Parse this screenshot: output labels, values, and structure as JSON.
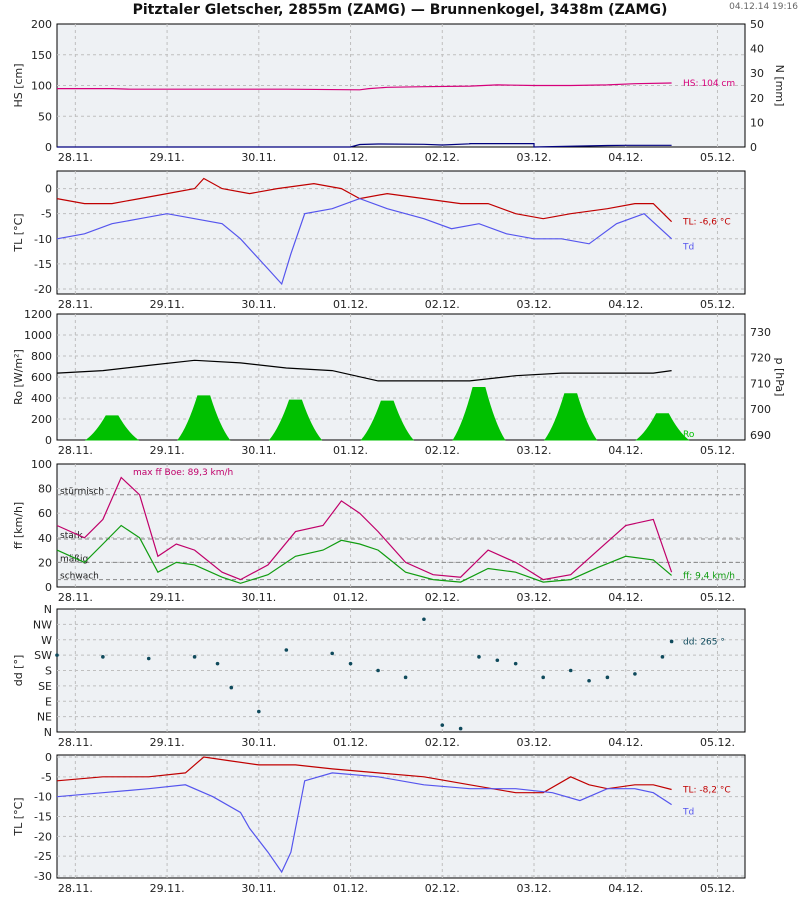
{
  "title": "Pitztaler Gletscher, 2855m (ZAMG) — Brunnenkogel, 3438m (ZAMG)",
  "timestamp": "04.12.14 19:16",
  "x_tick_labels": [
    "28.11.",
    "29.11.",
    "30.11.",
    "01.12.",
    "02.12.",
    "03.12.",
    "04.12.",
    "05.12."
  ],
  "colors": {
    "grid": "#bfbfbf",
    "panel_bg": "#eef1f4",
    "hs": "#d6007a",
    "n": "#00007f",
    "tl": "#c00000",
    "td": "#5555ee",
    "ro": "#00c000",
    "p": "#000000",
    "ff": "#109c10",
    "boe": "#c0006a",
    "dd": "#0f4a5c"
  },
  "chart_data": [
    {
      "type": "line",
      "ylabel": "HS [cm]",
      "ylabel_right": "N [mm]",
      "ylim": [
        0,
        200
      ],
      "yticks": [
        "0",
        "50",
        "100",
        "150",
        "200"
      ],
      "ylim_right": [
        0,
        50
      ],
      "yticks_right": [
        "0",
        "10",
        "20",
        "30",
        "40",
        "50"
      ],
      "x_days_range": [
        0,
        7.5
      ],
      "series": [
        {
          "name": "HS",
          "x": [
            0,
            0.6,
            0.8,
            1.5,
            2.5,
            3.3,
            3.4,
            3.6,
            4,
            4.5,
            4.8,
            5.2,
            5.6,
            6,
            6.3,
            6.7
          ],
          "y": [
            95,
            95,
            94,
            94,
            94,
            93,
            95,
            97,
            98,
            99,
            101,
            100,
            100,
            101,
            103,
            104
          ]
        },
        {
          "name": "N",
          "x": [
            0,
            3.2,
            3.3,
            3.5,
            4,
            4.2,
            4.5,
            4.5,
            5.2,
            5.2,
            6.0,
            6.2,
            6.7
          ],
          "y": [
            0,
            0,
            1,
            1.2,
            1.1,
            0.8,
            1.3,
            1.4,
            1.4,
            0,
            0.6,
            0.7,
            0.7
          ]
        }
      ],
      "annotations": [
        "HS: 104 cm"
      ]
    },
    {
      "type": "line",
      "ylabel": "TL [°C]",
      "ylim": [
        -21,
        3.5
      ],
      "yticks": [
        "-20",
        "-15",
        "-10",
        "-5",
        "0"
      ],
      "ytick_values": [
        -20,
        -15,
        -10,
        -5,
        0
      ],
      "x_days_range": [
        0,
        7.5
      ],
      "series": [
        {
          "name": "TL",
          "x": [
            0,
            0.3,
            0.6,
            0.9,
            1.2,
            1.5,
            1.6,
            1.8,
            2.1,
            2.4,
            2.8,
            3.1,
            3.3,
            3.6,
            4.0,
            4.4,
            4.7,
            5.0,
            5.3,
            5.6,
            6.0,
            6.3,
            6.5,
            6.7
          ],
          "y": [
            -2,
            -3,
            -3,
            -2,
            -1,
            0,
            2,
            0,
            -1,
            0,
            1,
            0,
            -2,
            -1,
            -2,
            -3,
            -3,
            -5,
            -6,
            -5,
            -4,
            -3,
            -3,
            -6.6
          ]
        },
        {
          "name": "Td",
          "x": [
            0,
            0.3,
            0.6,
            0.9,
            1.2,
            1.5,
            1.8,
            2.0,
            2.2,
            2.3,
            2.45,
            2.55,
            2.7,
            3.0,
            3.3,
            3.6,
            4.0,
            4.3,
            4.6,
            4.9,
            5.2,
            5.5,
            5.8,
            6.1,
            6.4,
            6.7
          ],
          "y": [
            -10,
            -9,
            -7,
            -6,
            -5,
            -6,
            -7,
            -10,
            -14,
            -16,
            -19,
            -13,
            -5,
            -4,
            -2,
            -4,
            -6,
            -8,
            -7,
            -9,
            -10,
            -10,
            -11,
            -7,
            -5,
            -10
          ]
        }
      ],
      "annotations": [
        "TL: -6,6 °C",
        "Td"
      ]
    },
    {
      "type": "area",
      "ylabel": "Ro [W/m²]",
      "ylabel_right": "p [hPa]",
      "ylim": [
        0,
        1200
      ],
      "yticks": [
        "0",
        "200",
        "400",
        "600",
        "800",
        "1000",
        "1200"
      ],
      "ylim_right": [
        688,
        737
      ],
      "yticks_right": [
        "690",
        "700",
        "710",
        "720",
        "730"
      ],
      "ytick_values_right": [
        690,
        700,
        710,
        720,
        730
      ],
      "x_days_range": [
        0,
        7.5
      ],
      "day_peaks_x": [
        0.6,
        1.6,
        2.6,
        3.6,
        4.6,
        5.6,
        6.6
      ],
      "day_peaks_y": [
        230,
        420,
        380,
        370,
        500,
        440,
        250
      ],
      "series": [
        {
          "name": "p",
          "x": [
            0,
            0.5,
            1.0,
            1.5,
            2.0,
            2.5,
            3.0,
            3.5,
            4.0,
            4.5,
            5.0,
            5.5,
            6.0,
            6.5,
            6.7
          ],
          "y": [
            714,
            715,
            717,
            719,
            718,
            716,
            715,
            711,
            711,
            711,
            713,
            714,
            714,
            714,
            715
          ]
        }
      ],
      "annotations": [
        "Ro"
      ]
    },
    {
      "type": "line",
      "ylabel": "ff [km/h]",
      "ylim": [
        0,
        100
      ],
      "yticks": [
        "0",
        "20",
        "40",
        "60",
        "80",
        "100"
      ],
      "x_days_range": [
        0,
        7.5
      ],
      "reference_lines": [
        {
          "label": "stürmisch",
          "y": 75
        },
        {
          "label": "stark",
          "y": 39
        },
        {
          "label": "mäßig",
          "y": 20
        },
        {
          "label": "schwach",
          "y": 6
        }
      ],
      "series": [
        {
          "name": "ff",
          "x": [
            0,
            0.3,
            0.5,
            0.7,
            0.9,
            1.1,
            1.3,
            1.5,
            1.8,
            2.0,
            2.3,
            2.6,
            2.9,
            3.1,
            3.3,
            3.5,
            3.8,
            4.1,
            4.4,
            4.7,
            5.0,
            5.3,
            5.6,
            5.9,
            6.2,
            6.5,
            6.7
          ],
          "y": [
            30,
            20,
            35,
            50,
            40,
            12,
            20,
            18,
            8,
            3,
            10,
            25,
            30,
            38,
            35,
            30,
            12,
            6,
            4,
            15,
            12,
            4,
            6,
            16,
            25,
            22,
            9.4
          ]
        },
        {
          "name": "Boe",
          "x": [
            0,
            0.3,
            0.5,
            0.7,
            0.9,
            1.1,
            1.3,
            1.5,
            1.8,
            2.0,
            2.3,
            2.6,
            2.9,
            3.1,
            3.3,
            3.5,
            3.8,
            4.1,
            4.4,
            4.7,
            5.0,
            5.3,
            5.6,
            5.9,
            6.2,
            6.5,
            6.7
          ],
          "y": [
            50,
            40,
            55,
            89,
            75,
            25,
            35,
            30,
            12,
            6,
            18,
            45,
            50,
            70,
            60,
            45,
            20,
            10,
            8,
            30,
            20,
            6,
            10,
            30,
            50,
            55,
            12
          ]
        }
      ],
      "annotations": [
        "max ff Boe: 89,3 km/h",
        "ff: 9,4 km/h"
      ]
    },
    {
      "type": "scatter",
      "ylabel": "dd [°]",
      "ylim": [
        0,
        360
      ],
      "yticks": [
        "N",
        "NE",
        "E",
        "SE",
        "S",
        "SW",
        "W",
        "NW",
        "N"
      ],
      "ytick_values": [
        0,
        45,
        90,
        135,
        180,
        225,
        270,
        315,
        360
      ],
      "x_days_range": [
        0,
        7.5
      ],
      "point_x": [
        0,
        0.5,
        1.0,
        1.5,
        1.75,
        1.9,
        2.2,
        2.5,
        3.0,
        3.2,
        3.5,
        3.8,
        4.0,
        4.2,
        4.4,
        4.6,
        4.8,
        5.0,
        5.3,
        5.6,
        5.8,
        6.0,
        6.3,
        6.6,
        6.7
      ],
      "point_y": [
        225,
        220,
        215,
        220,
        200,
        130,
        60,
        240,
        230,
        200,
        180,
        160,
        330,
        20,
        10,
        220,
        210,
        200,
        160,
        180,
        150,
        160,
        170,
        220,
        265
      ],
      "annotations": [
        "dd: 265 °"
      ]
    },
    {
      "type": "line",
      "ylabel": "TL [°C]",
      "ylim": [
        -30.5,
        0.5
      ],
      "yticks": [
        "-30",
        "-25",
        "-20",
        "-15",
        "-10",
        "-5",
        "0"
      ],
      "ytick_values": [
        -30,
        -25,
        -20,
        -15,
        -10,
        -5,
        0
      ],
      "x_days_range": [
        0,
        7.5
      ],
      "series": [
        {
          "name": "TL",
          "x": [
            0,
            0.5,
            1.0,
            1.4,
            1.6,
            1.9,
            2.2,
            2.6,
            3.0,
            3.5,
            4.0,
            4.5,
            5.0,
            5.3,
            5.6,
            5.8,
            6.0,
            6.3,
            6.5,
            6.7
          ],
          "y": [
            -6,
            -5,
            -5,
            -4,
            0,
            -1,
            -2,
            -2,
            -3,
            -4,
            -5,
            -7,
            -9,
            -9,
            -5,
            -7,
            -8,
            -7,
            -7,
            -8.2
          ]
        },
        {
          "name": "Td",
          "x": [
            0,
            0.5,
            1.0,
            1.4,
            1.7,
            2.0,
            2.1,
            2.3,
            2.45,
            2.55,
            2.7,
            3.0,
            3.5,
            4.0,
            4.5,
            5.0,
            5.4,
            5.7,
            6.0,
            6.3,
            6.5,
            6.7
          ],
          "y": [
            -10,
            -9,
            -8,
            -7,
            -10,
            -14,
            -18,
            -24,
            -29,
            -24,
            -6,
            -4,
            -5,
            -7,
            -8,
            -8,
            -9,
            -11,
            -8,
            -8,
            -9,
            -12
          ]
        }
      ],
      "annotations": [
        "TL: -8,2 °C",
        "Td"
      ]
    }
  ]
}
